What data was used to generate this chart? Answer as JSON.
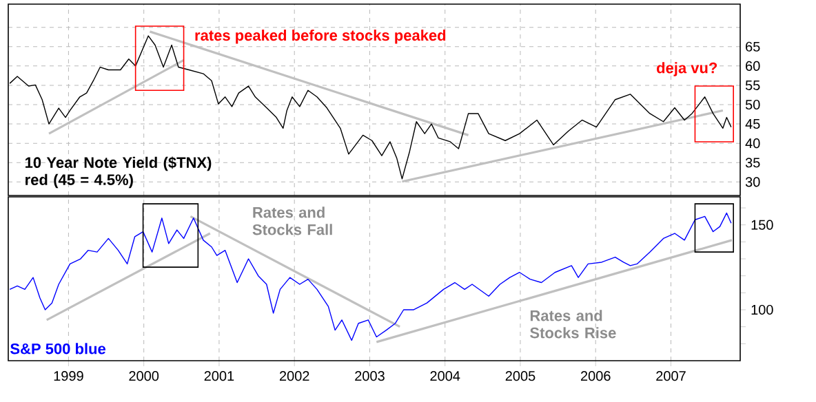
{
  "chart_data": [
    {
      "type": "line",
      "xlim": [
        1998.2,
        2007.92
      ],
      "ylim": [
        26.5,
        76
      ],
      "tick_labels": "y",
      "grid": true,
      "xticks": [
        1999,
        2000,
        2001,
        2002,
        2003,
        2004,
        2005,
        2006,
        2007
      ],
      "yticks": [
        30,
        35,
        40,
        45,
        50,
        55,
        60,
        65,
        {
          "value": 70,
          "label": null
        }
      ],
      "annotations": [
        "rates peaked before stocks peaked",
        "deja vu?"
      ],
      "series": [
        {
          "color": "#c0c0c0",
          "x": [
            1998.74,
            2000.53
          ],
          "values": [
            42.5,
            61.5
          ]
        },
        {
          "color": "#c0c0c0",
          "x": [
            2000.08,
            2004.31
          ],
          "values": [
            68.9,
            42.1
          ]
        },
        {
          "color": "#c0c0c0",
          "x": [
            2003.43,
            2007.69
          ],
          "values": [
            30.1,
            48.5
          ]
        },
        {
          "name": "10 Year Note Yield ($TNX) red (45 = 4.5%)",
          "color": "#000000",
          "x": [
            1998.22,
            1998.32,
            1998.47,
            1998.56,
            1998.65,
            1998.74,
            1998.87,
            1998.96,
            1999.02,
            1999.15,
            1999.24,
            1999.33,
            1999.42,
            1999.53,
            1999.69,
            1999.8,
            1999.89,
            2000.06,
            2000.15,
            2000.26,
            2000.37,
            2000.46,
            2000.6,
            2000.79,
            2000.9,
            2000.99,
            2001.08,
            2001.17,
            2001.26,
            2001.39,
            2001.48,
            2001.63,
            2001.76,
            2001.85,
            2001.9,
            2001.97,
            2002.07,
            2002.18,
            2002.3,
            2002.43,
            2002.61,
            2002.72,
            2002.91,
            2003.03,
            2003.16,
            2003.27,
            2003.36,
            2003.43,
            2003.53,
            2003.62,
            2003.73,
            2003.82,
            2003.91,
            2004.07,
            2004.18,
            2004.31,
            2004.44,
            2004.58,
            2004.8,
            2004.99,
            2005.22,
            2005.44,
            2005.64,
            2005.82,
            2006.01,
            2006.26,
            2006.46,
            2006.72,
            2006.9,
            2007.05,
            2007.18,
            2007.28,
            2007.45,
            2007.56,
            2007.69,
            2007.74,
            2007.8
          ],
          "values": [
            55.5,
            57.3,
            54.8,
            55.1,
            51.3,
            45,
            49.1,
            46.7,
            48.5,
            52,
            53,
            56.2,
            59.7,
            59,
            59,
            61.8,
            60,
            67.8,
            65.4,
            59.7,
            65.4,
            59.7,
            59,
            58,
            56.2,
            50.2,
            52,
            49.5,
            53,
            54.8,
            52,
            49.2,
            46.7,
            43.9,
            48.5,
            52,
            49.5,
            53.7,
            52,
            49.2,
            43.9,
            37.2,
            42.1,
            40.7,
            36.8,
            40.4,
            36.1,
            30.8,
            37.9,
            45.6,
            42.5,
            45,
            41.4,
            40.4,
            38.6,
            47.7,
            47.7,
            42.5,
            40.7,
            42.5,
            46,
            39.6,
            43.2,
            46,
            44.2,
            51.3,
            52.7,
            47.7,
            45.6,
            49.2,
            46,
            47.7,
            52,
            47.7,
            43.9,
            46.7,
            44.2
          ]
        }
      ]
    },
    {
      "type": "line",
      "xlim": [
        1998.2,
        2007.92
      ],
      "ylim": [
        70,
        166.5
      ],
      "grid": "x",
      "xticks": [
        1999,
        2000,
        2001,
        2002,
        2003,
        2004,
        2005,
        2006,
        2007
      ],
      "yticks": [
        {
          "value": 80,
          "label": null
        },
        {
          "value": 90,
          "label": null
        },
        100,
        {
          "value": 110,
          "label": null
        },
        {
          "value": 120,
          "label": null
        },
        {
          "value": 130,
          "label": null
        },
        {
          "value": 140,
          "label": null
        },
        150,
        {
          "value": 160,
          "label": null
        }
      ],
      "annotations": [
        "Rates and Stocks Fall",
        "Rates and Stocks Rise"
      ],
      "series": [
        {
          "color": "#c0c0c0",
          "x": [
            1998.71,
            2000.88
          ],
          "values": [
            94,
            145
          ]
        },
        {
          "color": "#c0c0c0",
          "x": [
            2000.62,
            2003.4
          ],
          "values": [
            155,
            90
          ]
        },
        {
          "color": "#c0c0c0",
          "x": [
            2003.09,
            2007.81
          ],
          "values": [
            81,
            141
          ]
        },
        {
          "name": "S&P 500 blue",
          "color": "#0000ff",
          "x": [
            1998.22,
            1998.32,
            1998.42,
            1998.53,
            1998.62,
            1998.69,
            1998.78,
            1998.87,
            1999.02,
            1999.16,
            1999.26,
            1999.38,
            1999.53,
            1999.66,
            1999.78,
            1999.88,
            1999.99,
            2000.11,
            2000.24,
            2000.33,
            2000.44,
            2000.53,
            2000.66,
            2000.79,
            2000.9,
            2000.97,
            2001.08,
            2001.24,
            2001.39,
            2001.52,
            2001.63,
            2001.72,
            2001.81,
            2001.94,
            2002.07,
            2002.18,
            2002.3,
            2002.45,
            2002.54,
            2002.63,
            2002.76,
            2002.85,
            2002.98,
            2003.09,
            2003.22,
            2003.34,
            2003.45,
            2003.58,
            2003.76,
            2003.98,
            2004.13,
            2004.26,
            2004.36,
            2004.58,
            2004.73,
            2004.86,
            2004.99,
            2005.13,
            2005.28,
            2005.46,
            2005.68,
            2005.77,
            2005.9,
            2006.08,
            2006.26,
            2006.37,
            2006.46,
            2006.55,
            2006.72,
            2006.9,
            2007.05,
            2007.18,
            2007.32,
            2007.45,
            2007.56,
            2007.65,
            2007.74,
            2007.8
          ],
          "values": [
            112,
            114,
            112,
            119,
            107,
            100,
            104,
            115,
            127,
            130,
            135,
            134,
            142,
            135,
            127,
            143,
            146,
            134,
            154,
            139,
            147,
            142,
            154,
            141,
            137,
            132,
            135,
            116,
            130,
            120,
            115,
            98,
            112,
            119,
            115,
            118,
            112,
            102,
            88,
            94,
            82,
            92,
            94,
            84,
            88,
            92,
            100,
            100,
            104,
            112,
            116,
            112,
            115,
            108,
            115,
            119,
            122,
            118,
            116,
            122,
            126,
            119,
            127,
            128,
            131,
            128,
            126,
            127,
            134,
            142,
            145,
            141,
            153,
            155,
            146,
            149,
            157,
            151
          ]
        }
      ]
    }
  ]
}
